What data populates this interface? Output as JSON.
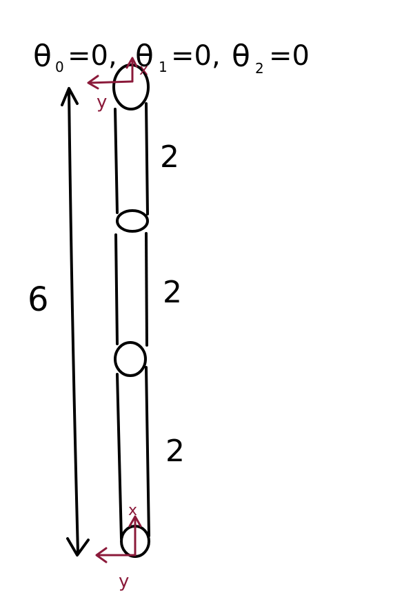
{
  "header": {
    "eq0_symbol": "θ",
    "eq0_sub": "0",
    "eq0_rest": "=0,",
    "eq1_symbol": "θ",
    "eq1_sub": "1",
    "eq1_rest": "=0,",
    "eq2_symbol": "θ",
    "eq2_sub": "2",
    "eq2_rest": "=0"
  },
  "total_length": {
    "label": "6"
  },
  "links": [
    {
      "label": "2"
    },
    {
      "label": "2"
    },
    {
      "label": "2"
    }
  ],
  "frames": {
    "top": {
      "x_label": "x",
      "y_label": "y"
    },
    "bottom": {
      "x_label": "x",
      "y_label": "y"
    }
  },
  "colors": {
    "ink": "#000000",
    "frame": "#8b1a3a"
  }
}
